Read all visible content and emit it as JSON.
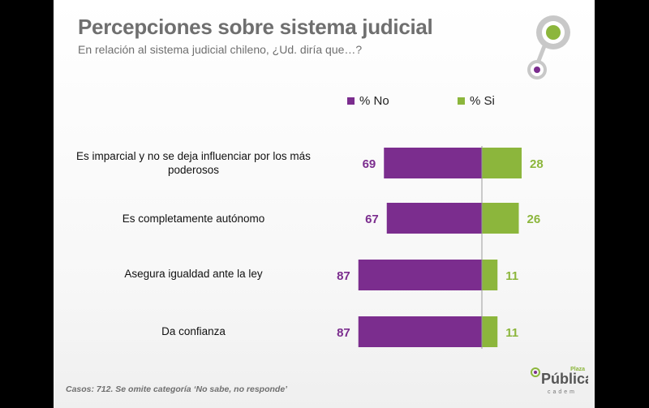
{
  "header": {
    "title": "Percepciones sobre sistema judicial",
    "subtitle": "En relación al sistema judicial chileno, ¿Ud. diría que…?"
  },
  "legend": {
    "no_label": "% No",
    "si_label": "% Si"
  },
  "colors": {
    "no": "#7b2d8e",
    "si": "#8cb63c",
    "title": "#6f6f6f"
  },
  "chart_data": {
    "type": "bar",
    "orientation": "horizontal-diverging",
    "categories": [
      "Es imparcial y no se deja influenciar por los más poderosos",
      "Es completamente autónomo",
      "Asegura igualdad ante la ley",
      "Da confianza"
    ],
    "series": [
      {
        "name": "% No",
        "values": [
          69,
          67,
          87,
          87
        ]
      },
      {
        "name": "% Si",
        "values": [
          28,
          26,
          11,
          11
        ]
      }
    ],
    "legend_position": "top",
    "data_labels": true,
    "grid": false
  },
  "footnote": "Casos: 712. Se omite categoría ‘No sabe, no responde’",
  "logo": {
    "plaza": "Plaza",
    "publica": "Pública",
    "cadem": "cadem",
    "icon": "plaza-publica-logo-icon"
  }
}
